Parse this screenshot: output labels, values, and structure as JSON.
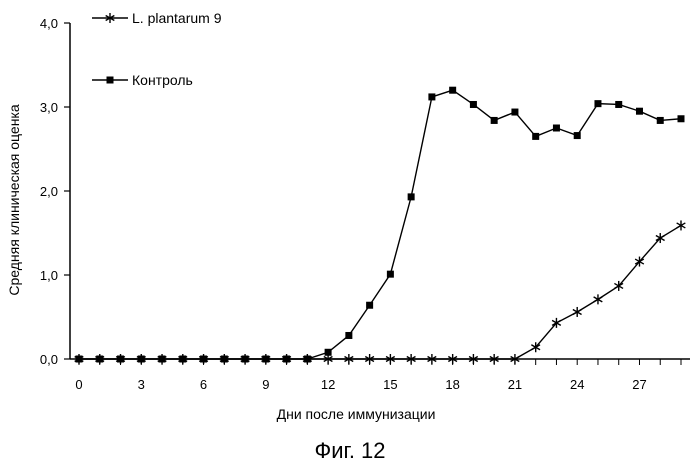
{
  "chart_data": {
    "type": "line",
    "title": "",
    "xlabel": "Дни после иммунизации",
    "ylabel": "Средняя клиническая оценка",
    "xlim": [
      0,
      29
    ],
    "ylim": [
      0,
      4
    ],
    "x_ticks": [
      0,
      3,
      6,
      9,
      12,
      15,
      18,
      21,
      24,
      27
    ],
    "y_ticks": [
      {
        "value": 0,
        "label": "0,0"
      },
      {
        "value": 1,
        "label": "1,0"
      },
      {
        "value": 2,
        "label": "2,0"
      },
      {
        "value": 3,
        "label": "3,0"
      },
      {
        "value": 4,
        "label": "4,0"
      }
    ],
    "x": [
      0,
      1,
      2,
      3,
      4,
      5,
      6,
      7,
      8,
      9,
      10,
      11,
      12,
      13,
      14,
      15,
      16,
      17,
      18,
      19,
      20,
      21,
      22,
      23,
      24,
      25,
      26,
      27,
      28,
      29
    ],
    "series": [
      {
        "name": "L. plantarum 9",
        "marker": "star",
        "values": [
          0,
          0,
          0,
          0,
          0,
          0,
          0,
          0,
          0,
          0,
          0,
          0,
          0,
          0,
          0,
          0,
          0,
          0,
          0,
          0,
          0,
          0,
          0.14,
          0.43,
          0.56,
          0.71,
          0.87,
          1.16,
          1.44,
          1.59
        ]
      },
      {
        "name": "Контроль",
        "marker": "square",
        "values": [
          0,
          0,
          0,
          0,
          0,
          0,
          0,
          0,
          0,
          0,
          0,
          0,
          0.08,
          0.28,
          0.64,
          1.01,
          1.93,
          3.12,
          3.2,
          3.03,
          2.84,
          2.94,
          2.65,
          2.75,
          2.66,
          3.04,
          3.03,
          2.95,
          2.84,
          2.86
        ]
      }
    ],
    "legend": "top-left"
  },
  "figure_caption": "Фиг. 12"
}
